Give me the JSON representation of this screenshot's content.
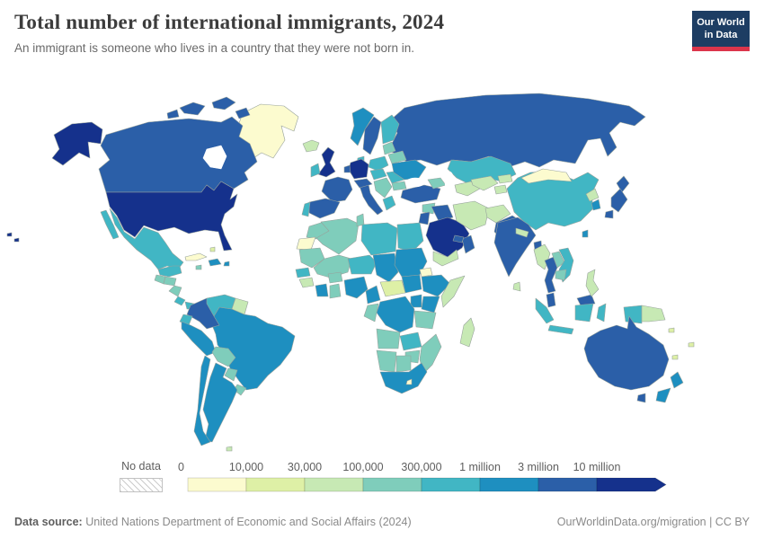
{
  "header": {
    "title": "Total number of international immigrants, 2024",
    "subtitle": "An immigrant is someone who lives in a country that they were not born in.",
    "logo": {
      "line1": "Our World",
      "line2": "in Data"
    }
  },
  "legend": {
    "no_data_label": "No data"
  },
  "footer": {
    "source_label": "Data source:",
    "source_text": " United Nations Department of Economic and Social Affairs (2024)",
    "right_text": "OurWorldinData.org/migration | CC BY"
  },
  "chart_data": {
    "type": "choropleth",
    "title": "Total number of international immigrants, 2024",
    "unit": "people",
    "legend_bins": {
      "thresholds": [
        0,
        10000,
        30000,
        100000,
        300000,
        1000000,
        3000000,
        10000000
      ],
      "labels": [
        "0",
        "10,000",
        "30,000",
        "100,000",
        "300,000",
        "1 million",
        "3 million",
        "10 million"
      ]
    },
    "bin_colors": [
      "#fcfbcf",
      "#def0a6",
      "#c7e9b4",
      "#7fcdbb",
      "#41b6c4",
      "#1e8fc0",
      "#2b5fa8",
      "#15318c"
    ],
    "no_data_style": "gray-diagonal-hatch",
    "border_color": "#97a29c",
    "regions": {
      "United States": 7,
      "Canada": 6,
      "Greenland": 0,
      "Iceland": 2,
      "Mexico": 4,
      "Guatemala": 3,
      "Honduras": 3,
      "Nicaragua": 3,
      "Costa Rica": 4,
      "Panama": 4,
      "Cuba": 0,
      "Jamaica": 3,
      "Hispaniola": 5,
      "Puerto Rico": 5,
      "Bahamas": 1,
      "Colombia": 6,
      "Venezuela": 4,
      "Guyana": 2,
      "Ecuador": 4,
      "Peru": 5,
      "Brazil": 5,
      "Bolivia": 3,
      "Paraguay": 3,
      "Uruguay": 3,
      "Argentina": 5,
      "Chile": 5,
      "Falkland Islands": 2,
      "Norway": 5,
      "Sweden": 6,
      "Finland": 4,
      "Denmark": 4,
      "United Kingdom": 7,
      "Ireland": 4,
      "Germany": 7,
      "Benelux": 6,
      "France": 6,
      "Spain": 6,
      "Portugal": 4,
      "Italy": 6,
      "Alpine": 6,
      "Poland": 4,
      "Czechia-Hungary": 4,
      "Balkans": 3,
      "Greece": 4,
      "Romania": 4,
      "Bulgaria": 3,
      "Baltics": 3,
      "Belarus": 3,
      "Ukraine": 5,
      "Russia": 6,
      "Turkey": 6,
      "Caucasus": 3,
      "Syria": 3,
      "Iraq": 6,
      "Jordan-Israel": 6,
      "Saudi Arabia": 7,
      "Yemen": 2,
      "Oman": 6,
      "UAE": 6,
      "Iran": 2,
      "Afghanistan": 2,
      "Pakistan": 6,
      "Kazakhstan": 4,
      "Turkmenistan": 2,
      "Uzbekistan": 2,
      "Kyrgyzstan": 2,
      "Tajikistan": 2,
      "India": 6,
      "Nepal": 2,
      "Bangladesh": 6,
      "Sri Lanka": 2,
      "China": 4,
      "Mongolia": 0,
      "North Korea": 2,
      "South Korea": 5,
      "Japan": 6,
      "Taiwan": 5,
      "Myanmar": 2,
      "Thailand": 6,
      "Laos": 3,
      "Vietnam": 4,
      "Cambodia": 3,
      "Malaysia": 6,
      "Indonesia": 4,
      "Philippines": 2,
      "Papua New Guinea": 2,
      "Solomon Islands": 1,
      "Fiji": 1,
      "New Caledonia": 1,
      "Australia": 6,
      "New Zealand": 5,
      "Morocco": 3,
      "Western Sahara": 0,
      "Algeria": 3,
      "Tunisia": 3,
      "Libya": 4,
      "Egypt": 4,
      "Mauritania": 3,
      "Mali": 3,
      "Niger": 4,
      "Chad": 5,
      "Sudan": 5,
      "Eritrea": 0,
      "Senegal": 4,
      "Guinea": 2,
      "Ivory Coast": 5,
      "Ghana": 3,
      "Burkina Faso": 3,
      "Nigeria": 5,
      "Cameroon": 5,
      "Central African Republic": 1,
      "South Sudan": 5,
      "Ethiopia": 5,
      "Somalia": 2,
      "Kenya": 5,
      "Uganda": 5,
      "DR Congo": 5,
      "Congo-Gabon": 3,
      "Tanzania": 3,
      "Angola": 3,
      "Zambia": 4,
      "Mozambique": 3,
      "Zimbabwe": 3,
      "Namibia": 3,
      "Botswana": 3,
      "South Africa": 5,
      "Lesotho": 0,
      "Madagascar": 2
    }
  }
}
